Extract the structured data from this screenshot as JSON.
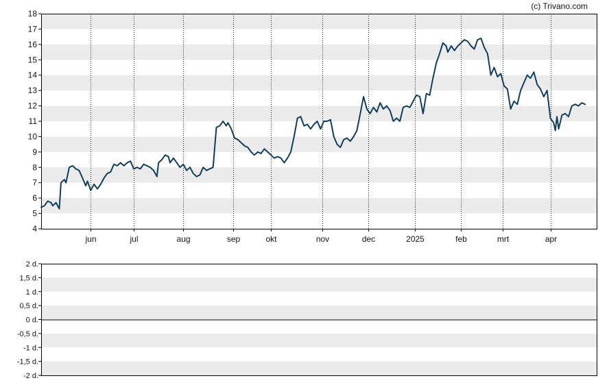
{
  "credit": "(c) Trivano.com",
  "colors": {
    "line": "#0f3d5c",
    "band": "#ebebeb",
    "axis": "#000000"
  },
  "chart_data": [
    {
      "type": "line",
      "ylim": [
        4,
        18
      ],
      "yticks": [
        "4",
        "5",
        "6",
        "7",
        "8",
        "9",
        "10",
        "11",
        "12",
        "13",
        "14",
        "15",
        "16",
        "17",
        "18"
      ],
      "xlim": [
        0,
        336
      ],
      "xticks": [
        {
          "label": "jun",
          "x": 30
        },
        {
          "label": "jul",
          "x": 56
        },
        {
          "label": "aug",
          "x": 86
        },
        {
          "label": "sep",
          "x": 116
        },
        {
          "label": "okt",
          "x": 139
        },
        {
          "label": "nov",
          "x": 170
        },
        {
          "label": "dec",
          "x": 198
        },
        {
          "label": "2025",
          "x": 226
        },
        {
          "label": "feb",
          "x": 254
        },
        {
          "label": "mrt",
          "x": 279
        },
        {
          "label": "apr",
          "x": 308
        }
      ],
      "grid": "alternating horizontal bands, dotted vertical lines at month starts",
      "series": [
        {
          "points": [
            [
              0,
              5.4
            ],
            [
              2,
              5.5
            ],
            [
              4,
              5.8
            ],
            [
              6,
              5.7
            ],
            [
              7,
              5.5
            ],
            [
              9,
              5.7
            ],
            [
              10,
              5.5
            ],
            [
              11,
              5.3
            ],
            [
              12,
              7.0
            ],
            [
              14,
              7.2
            ],
            [
              15,
              7.0
            ],
            [
              17,
              8.0
            ],
            [
              19,
              8.1
            ],
            [
              21,
              7.9
            ],
            [
              23,
              7.8
            ],
            [
              25,
              7.3
            ],
            [
              27,
              6.8
            ],
            [
              28,
              7.1
            ],
            [
              30,
              6.5
            ],
            [
              32,
              6.9
            ],
            [
              34,
              6.6
            ],
            [
              36,
              6.9
            ],
            [
              38,
              7.3
            ],
            [
              40,
              7.6
            ],
            [
              42,
              7.7
            ],
            [
              44,
              8.2
            ],
            [
              46,
              8.1
            ],
            [
              48,
              8.3
            ],
            [
              50,
              8.1
            ],
            [
              52,
              8.3
            ],
            [
              54,
              8.4
            ],
            [
              56,
              7.9
            ],
            [
              58,
              8.0
            ],
            [
              60,
              7.9
            ],
            [
              62,
              8.2
            ],
            [
              64,
              8.1
            ],
            [
              66,
              8.0
            ],
            [
              68,
              7.8
            ],
            [
              70,
              7.4
            ],
            [
              71,
              8.3
            ],
            [
              73,
              8.5
            ],
            [
              75,
              8.8
            ],
            [
              77,
              8.7
            ],
            [
              78,
              8.3
            ],
            [
              80,
              8.6
            ],
            [
              82,
              8.3
            ],
            [
              84,
              8.0
            ],
            [
              86,
              8.2
            ],
            [
              88,
              7.8
            ],
            [
              90,
              8.0
            ],
            [
              92,
              7.6
            ],
            [
              94,
              7.4
            ],
            [
              96,
              7.5
            ],
            [
              98,
              8.0
            ],
            [
              100,
              7.8
            ],
            [
              102,
              7.9
            ],
            [
              104,
              8.0
            ],
            [
              106,
              10.6
            ],
            [
              108,
              10.7
            ],
            [
              110,
              11.0
            ],
            [
              112,
              10.7
            ],
            [
              113,
              10.9
            ],
            [
              115,
              10.5
            ],
            [
              117,
              9.9
            ],
            [
              119,
              9.8
            ],
            [
              121,
              9.6
            ],
            [
              123,
              9.4
            ],
            [
              125,
              9.3
            ],
            [
              127,
              9.0
            ],
            [
              129,
              8.8
            ],
            [
              131,
              9.0
            ],
            [
              133,
              8.9
            ],
            [
              135,
              9.2
            ],
            [
              137,
              9.0
            ],
            [
              139,
              8.8
            ],
            [
              141,
              8.6
            ],
            [
              143,
              8.7
            ],
            [
              145,
              8.6
            ],
            [
              147,
              8.3
            ],
            [
              149,
              8.6
            ],
            [
              151,
              9.0
            ],
            [
              153,
              10.0
            ],
            [
              155,
              11.2
            ],
            [
              157,
              11.3
            ],
            [
              159,
              10.7
            ],
            [
              161,
              10.8
            ],
            [
              163,
              10.5
            ],
            [
              165,
              10.8
            ],
            [
              167,
              11.0
            ],
            [
              169,
              10.5
            ],
            [
              171,
              11.0
            ],
            [
              173,
              11.0
            ],
            [
              175,
              11.1
            ],
            [
              177,
              10.0
            ],
            [
              179,
              9.5
            ],
            [
              181,
              9.3
            ],
            [
              183,
              9.8
            ],
            [
              185,
              9.9
            ],
            [
              187,
              9.7
            ],
            [
              189,
              10.0
            ],
            [
              191,
              10.4
            ],
            [
              193,
              11.5
            ],
            [
              195,
              12.6
            ],
            [
              197,
              11.8
            ],
            [
              199,
              11.5
            ],
            [
              201,
              11.9
            ],
            [
              203,
              11.6
            ],
            [
              205,
              12.2
            ],
            [
              207,
              11.8
            ],
            [
              209,
              12.0
            ],
            [
              211,
              11.7
            ],
            [
              213,
              11.0
            ],
            [
              215,
              11.2
            ],
            [
              217,
              11.0
            ],
            [
              219,
              11.9
            ],
            [
              221,
              12.0
            ],
            [
              223,
              11.9
            ],
            [
              225,
              12.3
            ],
            [
              227,
              12.7
            ],
            [
              229,
              12.6
            ],
            [
              231,
              11.5
            ],
            [
              233,
              12.8
            ],
            [
              235,
              12.7
            ],
            [
              237,
              13.8
            ],
            [
              239,
              14.8
            ],
            [
              241,
              15.4
            ],
            [
              243,
              16.1
            ],
            [
              245,
              15.9
            ],
            [
              246,
              15.5
            ],
            [
              248,
              15.9
            ],
            [
              250,
              15.6
            ],
            [
              252,
              15.9
            ],
            [
              254,
              16.1
            ],
            [
              256,
              16.3
            ],
            [
              258,
              16.2
            ],
            [
              260,
              15.9
            ],
            [
              262,
              15.7
            ],
            [
              264,
              16.3
            ],
            [
              266,
              16.4
            ],
            [
              268,
              15.8
            ],
            [
              270,
              15.4
            ],
            [
              272,
              14.0
            ],
            [
              274,
              14.5
            ],
            [
              276,
              13.9
            ],
            [
              278,
              14.1
            ],
            [
              280,
              13.3
            ],
            [
              282,
              13.1
            ],
            [
              284,
              11.8
            ],
            [
              286,
              12.3
            ],
            [
              288,
              12.1
            ],
            [
              290,
              13.0
            ],
            [
              292,
              13.5
            ],
            [
              294,
              14.0
            ],
            [
              296,
              13.8
            ],
            [
              298,
              14.2
            ],
            [
              300,
              13.4
            ],
            [
              302,
              13.1
            ],
            [
              304,
              12.6
            ],
            [
              306,
              13.0
            ],
            [
              308,
              11.2
            ],
            [
              310,
              10.9
            ],
            [
              311,
              10.4
            ],
            [
              312,
              11.3
            ],
            [
              313,
              10.5
            ],
            [
              315,
              11.4
            ],
            [
              317,
              11.5
            ],
            [
              319,
              11.3
            ],
            [
              321,
              12.0
            ],
            [
              323,
              12.1
            ],
            [
              325,
              12.0
            ],
            [
              327,
              12.2
            ],
            [
              329,
              12.1
            ]
          ]
        }
      ]
    },
    {
      "type": "line",
      "ylim": [
        -2,
        2
      ],
      "yticks": [
        "-2 d.",
        "-1,5 d.",
        "-1 d.",
        "-0,5 d.",
        "0 d.",
        "0,5 d.",
        "1 d.",
        "1,5 d.",
        "2 d."
      ],
      "reference_line": 0,
      "series": []
    }
  ]
}
